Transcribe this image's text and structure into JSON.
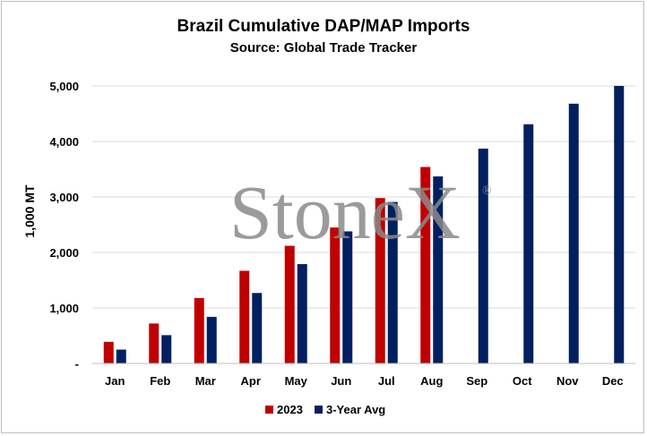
{
  "chart_data": {
    "type": "bar",
    "title": "Brazil Cumulative DAP/MAP Imports",
    "subtitle": "Source: Global Trade Tracker",
    "ylabel": "1,000 MT",
    "xlabel": "",
    "ylim": [
      0,
      5000
    ],
    "yticks": [
      "-",
      "1,000",
      "2,000",
      "3,000",
      "4,000",
      "5,000"
    ],
    "grid": true,
    "legend": "bottom",
    "categories": [
      "Jan",
      "Feb",
      "Mar",
      "Apr",
      "May",
      "Jun",
      "Jul",
      "Aug",
      "Sep",
      "Oct",
      "Nov",
      "Dec"
    ],
    "series": [
      {
        "name": "2023",
        "color": "#c00000",
        "values": [
          390,
          720,
          1180,
          1670,
          2120,
          2450,
          2980,
          3540,
          null,
          null,
          null,
          null
        ]
      },
      {
        "name": "3-Year Avg",
        "color": "#002060",
        "values": [
          250,
          510,
          840,
          1270,
          1790,
          2380,
          2910,
          3370,
          3870,
          4310,
          4680,
          5000
        ]
      }
    ]
  },
  "watermark": {
    "text": "StoneX",
    "registered": "®"
  }
}
